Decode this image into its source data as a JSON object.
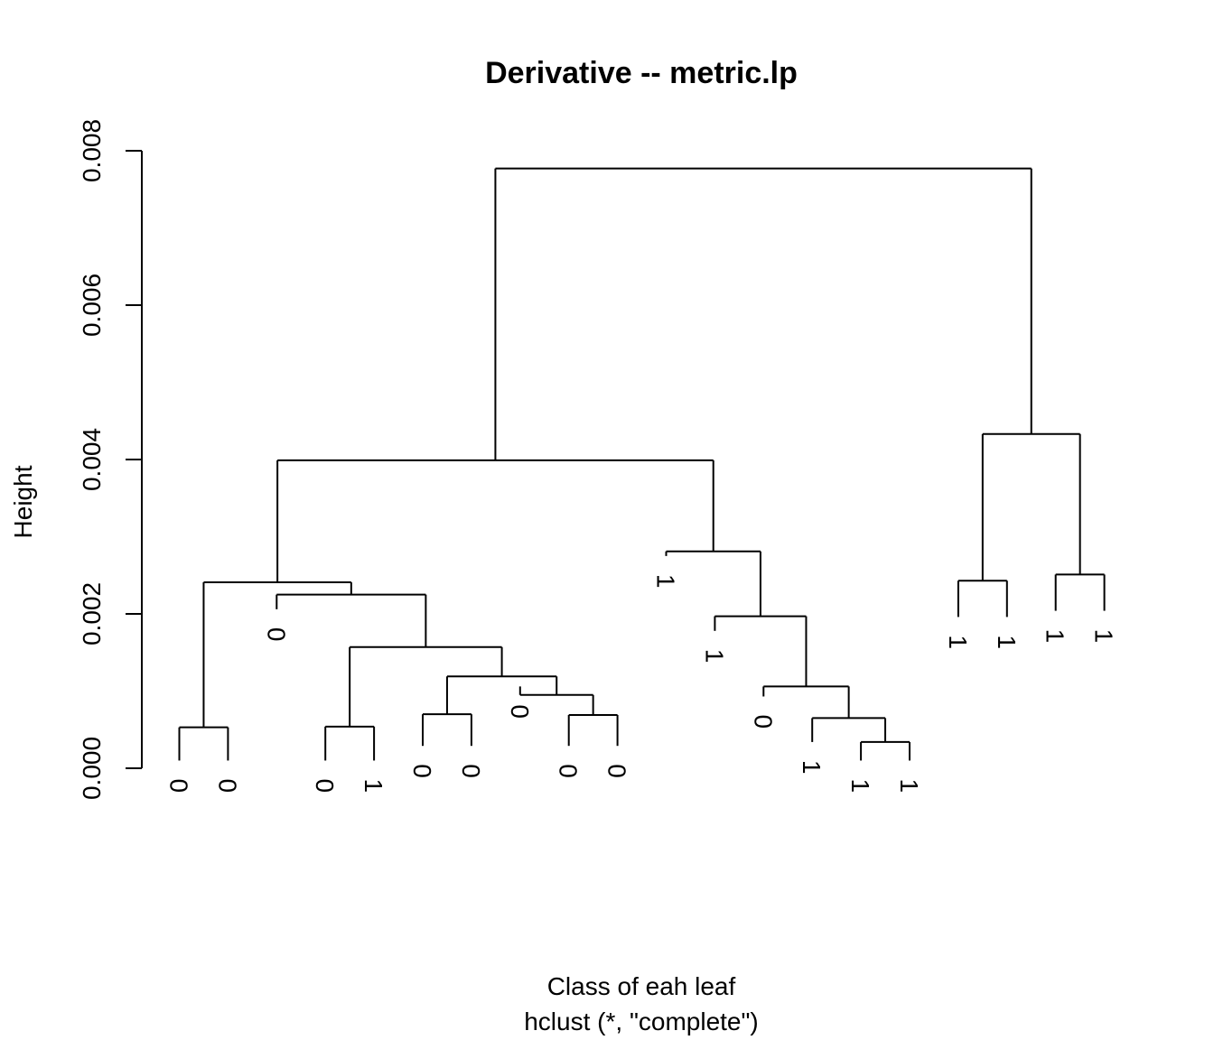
{
  "chart_data": {
    "type": "dendrogram",
    "title": "Derivative -- metric.lp",
    "ylabel": "Height",
    "xlabel": "Class of eah leaf",
    "sublabel": "hclust (*, \"complete\")",
    "ylim": [
      0,
      0.008
    ],
    "yticks": [
      {
        "value": 0.0,
        "label": "0.000"
      },
      {
        "value": 0.002,
        "label": "0.002"
      },
      {
        "value": 0.004,
        "label": "0.004"
      },
      {
        "value": 0.006,
        "label": "0.006"
      },
      {
        "value": 0.008,
        "label": "0.008"
      }
    ],
    "leaves": [
      "0",
      "0",
      "0",
      "0",
      "1",
      "0",
      "0",
      "0",
      "0",
      "0",
      "1",
      "1",
      "0",
      "1",
      "1",
      "1",
      "1",
      "1",
      "1",
      "1"
    ],
    "leaf_heights": [
      0.0001,
      0.0001,
      0.00206,
      0.0001,
      0.0001,
      0.00029,
      0.00029,
      0.00106,
      0.00029,
      0.00029,
      0.00275,
      0.00178,
      0.00093,
      0.00034,
      0.0001,
      0.0001,
      0.00196,
      0.00196,
      0.00204,
      0.00204
    ],
    "merges": [
      {
        "id": "A",
        "left": 0,
        "right": 1,
        "height": 0.00053
      },
      {
        "id": "B",
        "left": 3,
        "right": 4,
        "height": 0.00054
      },
      {
        "id": "C",
        "left": 5,
        "right": 6,
        "height": 0.0007
      },
      {
        "id": "D",
        "left": 8,
        "right": 9,
        "height": 0.00069
      },
      {
        "id": "E",
        "left": 7,
        "right": "D",
        "height": 0.00095
      },
      {
        "id": "F",
        "left": "C",
        "right": "E",
        "height": 0.00119
      },
      {
        "id": "G",
        "left": "B",
        "right": "F",
        "height": 0.00157
      },
      {
        "id": "H",
        "left": 2,
        "right": "G",
        "height": 0.00225
      },
      {
        "id": "I",
        "left": "A",
        "right": "H",
        "height": 0.00241
      },
      {
        "id": "J",
        "left": 14,
        "right": 15,
        "height": 0.00034
      },
      {
        "id": "K",
        "left": 13,
        "right": "J",
        "height": 0.00065
      },
      {
        "id": "L",
        "left": 12,
        "right": "K",
        "height": 0.00106
      },
      {
        "id": "M",
        "left": 11,
        "right": "L",
        "height": 0.00197
      },
      {
        "id": "N",
        "left": 10,
        "right": "M",
        "height": 0.00281
      },
      {
        "id": "O",
        "left": "I",
        "right": "N",
        "height": 0.00399
      },
      {
        "id": "P",
        "left": 16,
        "right": 17,
        "height": 0.00243
      },
      {
        "id": "Q",
        "left": 18,
        "right": 19,
        "height": 0.00251
      },
      {
        "id": "R",
        "left": "P",
        "right": "Q",
        "height": 0.00433
      },
      {
        "id": "S",
        "left": "O",
        "right": "R",
        "height": 0.00777
      }
    ]
  }
}
